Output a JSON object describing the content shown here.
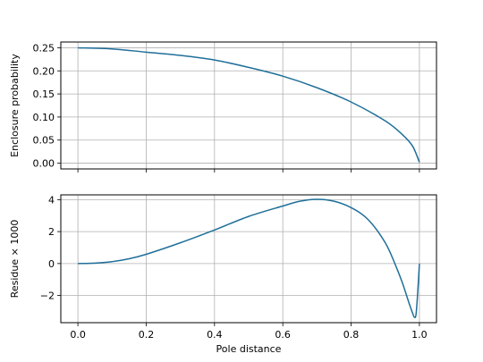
{
  "chart_data": [
    {
      "type": "line",
      "ylabel": "Enclosure probability",
      "xlabel": "",
      "xlim": [
        -0.05,
        1.05
      ],
      "ylim": [
        -0.0125,
        0.2625
      ],
      "grid": true,
      "xticks": [
        0.0,
        0.2,
        0.4,
        0.6,
        0.8,
        1.0
      ],
      "xtick_labels_visible": false,
      "yticks": [
        0.0,
        0.05,
        0.1,
        0.15,
        0.2,
        0.25
      ],
      "ytick_labels": [
        "0.00",
        "0.05",
        "0.10",
        "0.15",
        "0.20",
        "0.25"
      ],
      "series": [
        {
          "color": "#1f6f99",
          "x": [
            0.0,
            0.1,
            0.2,
            0.3,
            0.4,
            0.5,
            0.6,
            0.7,
            0.8,
            0.9,
            0.95,
            0.98,
            1.0
          ],
          "y": [
            0.25,
            0.2475,
            0.2405,
            0.2335,
            0.2235,
            0.2075,
            0.1885,
            0.1635,
            0.1325,
            0.0915,
            0.062,
            0.037,
            0.002
          ]
        }
      ]
    },
    {
      "type": "line",
      "ylabel": "Residue × 1000",
      "xlabel": "Pole distance",
      "xlim": [
        -0.05,
        1.05
      ],
      "ylim": [
        -3.7,
        4.3
      ],
      "grid": true,
      "xticks": [
        0.0,
        0.2,
        0.4,
        0.6,
        0.8,
        1.0
      ],
      "xtick_labels": [
        "0.0",
        "0.2",
        "0.4",
        "0.6",
        "0.8",
        "1.0"
      ],
      "yticks": [
        -2,
        0,
        2,
        4
      ],
      "ytick_labels": [
        "−2",
        "0",
        "2",
        "4"
      ],
      "series": [
        {
          "color": "#1f6f99",
          "x": [
            0.0,
            0.05,
            0.1,
            0.15,
            0.2,
            0.3,
            0.4,
            0.5,
            0.6,
            0.65,
            0.7,
            0.75,
            0.8,
            0.85,
            0.9,
            0.93,
            0.95,
            0.97,
            0.98,
            0.985,
            0.99,
            0.995,
            1.0
          ],
          "y": [
            0.0,
            0.03,
            0.12,
            0.3,
            0.58,
            1.3,
            2.1,
            2.95,
            3.6,
            3.9,
            4.02,
            3.9,
            3.5,
            2.75,
            1.3,
            -0.1,
            -1.2,
            -2.5,
            -3.1,
            -3.35,
            -3.2,
            -1.8,
            0.0
          ]
        }
      ]
    }
  ]
}
